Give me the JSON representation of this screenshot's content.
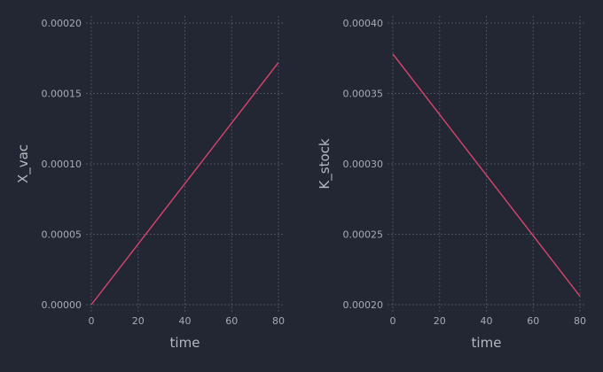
{
  "chart_data": [
    {
      "type": "line",
      "xlabel": "time",
      "ylabel": "X_vac",
      "xlim": [
        0,
        80
      ],
      "ylim": [
        0,
        0.0002
      ],
      "xticks": [
        0,
        20,
        40,
        60,
        80
      ],
      "xtick_labels": [
        "0",
        "20",
        "40",
        "60",
        "80"
      ],
      "yticks": [
        0,
        5e-05,
        0.0001,
        0.00015,
        0.0002
      ],
      "ytick_labels": [
        "0.00000",
        "0.00005",
        "0.00010",
        "0.00015",
        "0.00020"
      ],
      "grid": true,
      "series": [
        {
          "x": [
            0,
            80
          ],
          "y": [
            0.0,
            0.000172
          ]
        }
      ]
    },
    {
      "type": "line",
      "xlabel": "time",
      "ylabel": "K_stock",
      "xlim": [
        0,
        80
      ],
      "ylim": [
        0.0002,
        0.0004
      ],
      "xticks": [
        0,
        20,
        40,
        60,
        80
      ],
      "xtick_labels": [
        "0",
        "20",
        "40",
        "60",
        "80"
      ],
      "yticks": [
        0.0002,
        0.00025,
        0.0003,
        0.00035,
        0.0004
      ],
      "ytick_labels": [
        "0.00020",
        "0.00025",
        "0.00030",
        "0.00035",
        "0.00040"
      ],
      "grid": true,
      "series": [
        {
          "x": [
            0,
            80
          ],
          "y": [
            0.000378,
            0.000206
          ]
        }
      ]
    }
  ],
  "colors": {
    "background": "#222733",
    "line": "#d9456b",
    "grid": "#4a4f5c",
    "tick_text": "#a7abb3",
    "label_text": "#b4b8bf"
  }
}
